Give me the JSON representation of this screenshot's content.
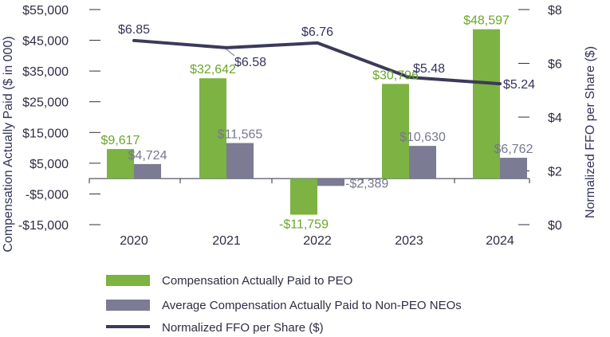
{
  "chart_data": {
    "type": "bar",
    "categories": [
      "2020",
      "2021",
      "2022",
      "2023",
      "2024"
    ],
    "series": [
      {
        "name": "Compensation Actually Paid to PEO",
        "type": "bar",
        "axis": "left",
        "color": "#7cb342",
        "values": [
          9617,
          32642,
          -11759,
          30796,
          48597
        ],
        "labels": [
          "$9,617",
          "$32,642",
          "-$11,759",
          "$30,796",
          "$48,597"
        ]
      },
      {
        "name": "Average Compensation Actually Paid to Non-PEO NEOs",
        "type": "bar",
        "axis": "left",
        "color": "#7b7b93",
        "values": [
          4724,
          11565,
          -2389,
          10630,
          6762
        ],
        "labels": [
          "$4,724",
          "$11,565",
          "-$2,389",
          "$10,630",
          "$6,762"
        ]
      },
      {
        "name": "Normalized FFO per Share ($)",
        "type": "line",
        "axis": "right",
        "color": "#3b3a5a",
        "values": [
          6.85,
          6.58,
          6.76,
          5.48,
          5.24
        ],
        "labels": [
          "$6.85",
          "$6.58",
          "$6.76",
          "$5.48",
          "$5.24"
        ]
      }
    ],
    "y_left": {
      "label": "Compensation Actually Paid ($ in 000)",
      "range": [
        -15000,
        55000
      ],
      "ticks": [
        55000,
        45000,
        35000,
        25000,
        15000,
        5000,
        -5000,
        -15000
      ],
      "tick_labels": [
        "$55,000",
        "$45,000",
        "$35,000",
        "$25,000",
        "$15,000",
        "$5,000",
        "-$5,000",
        "-$15,000"
      ]
    },
    "y_right": {
      "label": "Normalized FFO per Share ($)",
      "range": [
        0,
        8
      ],
      "ticks": [
        8,
        6,
        4,
        2,
        0
      ],
      "tick_labels": [
        "$8",
        "$6",
        "$4",
        "$2",
        "$0"
      ]
    },
    "legend_position": "bottom"
  }
}
